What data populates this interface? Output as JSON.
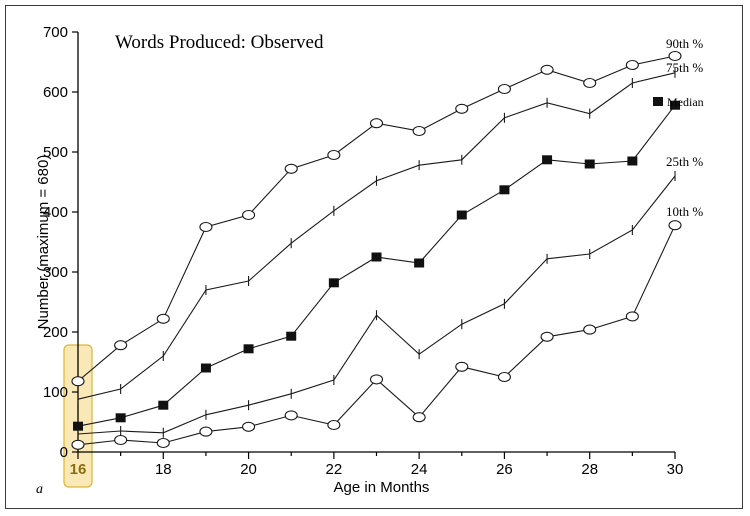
{
  "panel_label": "a",
  "chart_data": {
    "type": "line",
    "title": "Words Produced: Observed",
    "xlabel": "Age in Months",
    "ylabel": "Number (maximum = 680)",
    "xlim": [
      16,
      30
    ],
    "ylim": [
      0,
      700
    ],
    "xticks": [
      16,
      18,
      20,
      22,
      24,
      26,
      28,
      30
    ],
    "yticks": [
      0,
      100,
      200,
      300,
      400,
      500,
      600,
      700
    ],
    "grid": false,
    "x": [
      16,
      17,
      18,
      19,
      20,
      21,
      22,
      23,
      24,
      25,
      26,
      27,
      28,
      29,
      30
    ],
    "highlight": {
      "x": 16,
      "color": "#f5d77a"
    },
    "series": [
      {
        "name": "90th %",
        "marker": "circle",
        "label_class": "series-label",
        "values": [
          118,
          178,
          222,
          375,
          395,
          472,
          495,
          548,
          535,
          572,
          605,
          637,
          615,
          645,
          660
        ]
      },
      {
        "name": "75th %",
        "marker": "tick",
        "label_class": "series-label",
        "values": [
          88,
          105,
          160,
          270,
          285,
          348,
          402,
          452,
          478,
          487,
          557,
          582,
          564,
          615,
          632
        ]
      },
      {
        "name": "Median",
        "marker": "square",
        "label_class": "median-label",
        "values": [
          43,
          57,
          78,
          140,
          172,
          193,
          282,
          325,
          315,
          395,
          437,
          487,
          480,
          485,
          578
        ]
      },
      {
        "name": "25th %",
        "marker": "tick",
        "label_class": "series-label",
        "values": [
          30,
          35,
          32,
          62,
          78,
          97,
          120,
          228,
          163,
          213,
          247,
          322,
          330,
          370,
          460
        ]
      },
      {
        "name": "10th %",
        "marker": "circle",
        "label_class": "series-label",
        "values": [
          12,
          20,
          15,
          34,
          42,
          61,
          45,
          121,
          58,
          142,
          125,
          192,
          204,
          226,
          378
        ]
      }
    ]
  }
}
